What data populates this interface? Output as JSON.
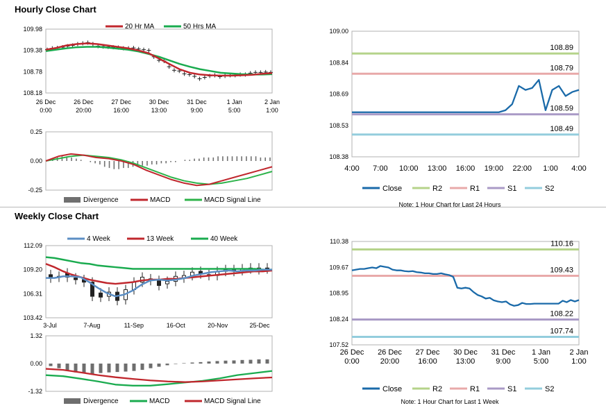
{
  "sections": {
    "hourly_title": "Hourly Close Chart",
    "weekly_title": "Weekly Close Chart"
  },
  "colors": {
    "ma20": "#c0272d",
    "ma50": "#1aab4f",
    "candle": "#222222",
    "divergence": "#707070",
    "macd": "#c0272d",
    "signal": "#2db34a",
    "close": "#1a6aa9",
    "r2": "#b5d38a",
    "r1": "#e8a9a9",
    "s1": "#a99ac6",
    "s2": "#93cddd",
    "w4": "#5b8ec4",
    "w13": "#c0272d",
    "w40": "#1aab4f",
    "w_macd": "#1aab4f",
    "w_signal": "#c0272d",
    "w_div": "#6e6e6e"
  },
  "chart_data": [
    {
      "id": "hourly-price",
      "type": "line",
      "title": "Hourly Close Chart",
      "legend": [
        "20 Hr MA",
        "50 Hrs MA"
      ],
      "ylim": [
        108.18,
        109.98
      ],
      "yticks": [
        "109.98",
        "109.38",
        "108.78",
        "108.18"
      ],
      "xticks": [
        [
          "26 Dec",
          "0:00"
        ],
        [
          "26 Dec",
          "20:00"
        ],
        [
          "27 Dec",
          "16:00"
        ],
        [
          "30 Dec",
          "13:00"
        ],
        [
          "31 Dec",
          "9:00"
        ],
        [
          "1 Jan",
          "5:00"
        ],
        [
          "2 Jan",
          "1:00"
        ]
      ],
      "price": [
        109.4,
        109.44,
        109.45,
        109.47,
        109.5,
        109.52,
        109.56,
        109.58,
        109.6,
        109.56,
        109.5,
        109.49,
        109.48,
        109.47,
        109.46,
        109.44,
        109.44,
        109.45,
        109.42,
        109.4,
        109.38,
        109.2,
        109.1,
        109.08,
        108.92,
        108.82,
        108.8,
        108.72,
        108.7,
        108.65,
        108.58,
        108.62,
        108.66,
        108.68,
        108.64,
        108.66,
        108.68,
        108.68,
        108.7,
        108.7,
        108.74,
        108.76,
        108.76,
        108.77,
        108.76
      ],
      "series": [
        {
          "name": "20 Hr MA",
          "values": [
            109.4,
            109.45,
            109.52,
            109.56,
            109.58,
            109.56,
            109.52,
            109.48,
            109.44,
            109.38,
            109.3,
            109.15,
            109.0,
            108.85,
            108.75,
            108.7,
            108.68,
            108.67,
            108.67,
            108.68,
            108.69,
            108.72,
            108.74
          ]
        },
        {
          "name": "50 Hrs MA",
          "values": [
            109.36,
            109.4,
            109.44,
            109.47,
            109.48,
            109.48,
            109.46,
            109.43,
            109.4,
            109.35,
            109.28,
            109.2,
            109.1,
            109.0,
            108.92,
            108.85,
            108.8,
            108.75,
            108.73,
            108.71,
            108.7,
            108.7,
            108.71
          ]
        }
      ]
    },
    {
      "id": "hourly-macd",
      "type": "line",
      "legend": [
        "Divergence",
        "MACD",
        "MACD Signal Line"
      ],
      "ylim": [
        -0.25,
        0.25
      ],
      "yticks": [
        "0.25",
        "0.00",
        "-0.25"
      ],
      "divergence": [
        0.01,
        0.02,
        0.03,
        0.04,
        0.04,
        0.03,
        0.02,
        0.01,
        0.0,
        -0.01,
        -0.02,
        -0.03,
        -0.05,
        -0.06,
        -0.07,
        -0.07,
        -0.06,
        -0.06,
        -0.05,
        -0.05,
        -0.04,
        -0.04,
        -0.03,
        -0.03,
        -0.02,
        -0.02,
        -0.01,
        -0.01,
        0.0,
        0.01,
        0.01,
        0.02,
        0.02,
        0.03,
        0.03,
        0.03,
        0.04,
        0.04,
        0.04,
        0.04,
        0.04,
        0.04,
        0.04,
        0.04,
        0.04,
        0.03,
        0.03,
        0.03
      ],
      "series": [
        {
          "name": "MACD",
          "values": [
            0.0,
            0.04,
            0.06,
            0.05,
            0.03,
            0.02,
            0.0,
            -0.03,
            -0.08,
            -0.12,
            -0.16,
            -0.19,
            -0.21,
            -0.2,
            -0.17,
            -0.14,
            -0.11,
            -0.08,
            -0.05
          ]
        },
        {
          "name": "MACD Signal Line",
          "values": [
            0.0,
            0.02,
            0.04,
            0.05,
            0.04,
            0.03,
            0.01,
            -0.02,
            -0.06,
            -0.1,
            -0.14,
            -0.17,
            -0.19,
            -0.2,
            -0.19,
            -0.17,
            -0.15,
            -0.12,
            -0.09
          ]
        }
      ]
    },
    {
      "id": "hourly-close-24h",
      "type": "line",
      "ylim": [
        108.38,
        109.0
      ],
      "yticks": [
        "109.00",
        "108.84",
        "108.69",
        "108.53",
        "108.38"
      ],
      "xticks": [
        "4:00",
        "7:00",
        "10:00",
        "13:00",
        "16:00",
        "19:00",
        "22:00",
        "1:00",
        "4:00"
      ],
      "close": [
        108.6,
        108.6,
        108.6,
        108.6,
        108.6,
        108.6,
        108.6,
        108.6,
        108.6,
        108.6,
        108.6,
        108.6,
        108.6,
        108.6,
        108.6,
        108.6,
        108.6,
        108.6,
        108.6,
        108.6,
        108.6,
        108.6,
        108.6,
        108.61,
        108.64,
        108.73,
        108.71,
        108.72,
        108.76,
        108.61,
        108.71,
        108.73,
        108.68,
        108.7,
        108.71
      ],
      "levels": {
        "R2": 108.89,
        "R1": 108.79,
        "S1": 108.59,
        "S2": 108.49
      },
      "level_labels": {
        "R2": "108.89",
        "R1": "108.79",
        "S1": "108.59",
        "S2": "108.49"
      },
      "legend": [
        "Close",
        "R2",
        "R1",
        "S1",
        "S2"
      ],
      "note": "Note: 1 Hour Chart for Last 24 Hours"
    },
    {
      "id": "weekly-price",
      "type": "line",
      "title": "Weekly Close Chart",
      "legend": [
        "4 Week",
        "13 Week",
        "40 Week"
      ],
      "ylim": [
        103.42,
        112.09
      ],
      "yticks": [
        "112.09",
        "109.20",
        "106.31",
        "103.42"
      ],
      "xticks": [
        "3-Jul",
        "7-Aug",
        "11-Sep",
        "16-Oct",
        "20-Nov",
        "25-Dec"
      ],
      "candles": [
        [
          108.6,
          108.2
        ],
        [
          108.3,
          108.4
        ],
        [
          108.8,
          108.3
        ],
        [
          108.2,
          108.0
        ],
        [
          108.0,
          107.7
        ],
        [
          107.7,
          106.0
        ],
        [
          106.4,
          105.9
        ],
        [
          106.0,
          106.5
        ],
        [
          106.5,
          105.5
        ],
        [
          105.6,
          106.8
        ],
        [
          106.8,
          107.7
        ],
        [
          107.7,
          108.3
        ],
        [
          108.1,
          107.9
        ],
        [
          107.9,
          107.3
        ],
        [
          107.5,
          107.8
        ],
        [
          107.8,
          108.4
        ],
        [
          108.2,
          108.5
        ],
        [
          108.5,
          108.9
        ],
        [
          109.0,
          108.7
        ],
        [
          108.6,
          108.5
        ],
        [
          108.5,
          109.0
        ],
        [
          109.0,
          109.2
        ],
        [
          109.2,
          109.0
        ],
        [
          109.1,
          109.3
        ],
        [
          109.3,
          109.4
        ],
        [
          109.2,
          109.4
        ],
        [
          109.4,
          109.3
        ]
      ],
      "series": [
        {
          "name": "4 Week",
          "values": [
            108.2,
            108.2,
            108.4,
            108.4,
            108.3,
            107.7,
            107.0,
            106.4,
            106.0,
            106.2,
            106.7,
            107.4,
            107.9,
            108.0,
            107.9,
            108.0,
            108.2,
            108.5,
            108.7,
            108.9,
            109.0,
            109.1,
            109.0,
            109.1,
            109.1,
            109.2,
            109.2
          ]
        },
        {
          "name": "13 Week",
          "values": [
            109.9,
            109.5,
            109.0,
            108.6,
            108.3,
            108.0,
            107.8,
            107.6,
            107.5,
            107.6,
            107.7,
            107.9,
            108.0,
            108.0,
            108.1,
            108.1,
            108.2,
            108.3,
            108.4,
            108.5,
            108.6,
            108.7,
            108.8,
            108.9,
            109.0,
            109.0,
            109.1
          ]
        },
        {
          "name": "40 Week",
          "values": [
            110.7,
            110.6,
            110.4,
            110.2,
            110.0,
            109.9,
            109.7,
            109.6,
            109.5,
            109.4,
            109.3,
            109.3,
            109.3,
            109.3,
            109.3,
            109.3,
            109.3,
            109.3,
            109.3,
            109.3,
            109.3,
            109.3,
            109.3,
            109.3,
            109.3,
            109.2,
            109.2
          ]
        }
      ]
    },
    {
      "id": "weekly-macd",
      "type": "line",
      "legend": [
        "Divergence",
        "MACD",
        "MACD Signal Line"
      ],
      "ylim": [
        -1.32,
        1.32
      ],
      "yticks": [
        "1.32",
        "0.00",
        "-1.32"
      ],
      "divergence": [
        -0.12,
        -0.22,
        -0.35,
        -0.42,
        -0.45,
        -0.5,
        -0.45,
        -0.42,
        -0.4,
        -0.38,
        -0.35,
        -0.3,
        -0.22,
        -0.15,
        -0.08,
        -0.02,
        0.02,
        0.05,
        0.07,
        0.1,
        0.12,
        0.14,
        0.15,
        0.17,
        0.18,
        0.2,
        0.2
      ],
      "series": [
        {
          "name": "MACD",
          "values": [
            -0.55,
            -0.6,
            -0.72,
            -0.85,
            -1.0,
            -1.05,
            -1.05,
            -0.98,
            -0.9,
            -0.82,
            -0.7,
            -0.55,
            -0.45,
            -0.35
          ]
        },
        {
          "name": "MACD Signal Line",
          "values": [
            -0.25,
            -0.3,
            -0.42,
            -0.55,
            -0.65,
            -0.73,
            -0.8,
            -0.85,
            -0.88,
            -0.85,
            -0.8,
            -0.75,
            -0.7,
            -0.66
          ]
        }
      ]
    },
    {
      "id": "weekly-close-1w",
      "type": "line",
      "ylim": [
        107.52,
        110.38
      ],
      "yticks": [
        "110.38",
        "109.67",
        "108.95",
        "108.24",
        "107.52"
      ],
      "xticks": [
        [
          "26 Dec",
          "0:00"
        ],
        [
          "26 Dec",
          "20:00"
        ],
        [
          "27 Dec",
          "16:00"
        ],
        [
          "30 Dec",
          "13:00"
        ],
        [
          "31 Dec",
          "9:00"
        ],
        [
          "1 Jan",
          "5:00"
        ],
        [
          "2 Jan",
          "1:00"
        ]
      ],
      "close": [
        109.58,
        109.6,
        109.62,
        109.62,
        109.64,
        109.66,
        109.64,
        109.7,
        109.68,
        109.66,
        109.6,
        109.58,
        109.58,
        109.56,
        109.55,
        109.56,
        109.53,
        109.52,
        109.5,
        109.5,
        109.48,
        109.48,
        109.5,
        109.47,
        109.45,
        109.4,
        109.1,
        109.08,
        109.1,
        109.08,
        108.98,
        108.9,
        108.86,
        108.8,
        108.82,
        108.75,
        108.72,
        108.7,
        108.72,
        108.64,
        108.6,
        108.62,
        108.68,
        108.65,
        108.65,
        108.66,
        108.66,
        108.66,
        108.66,
        108.66,
        108.66,
        108.66,
        108.74,
        108.7,
        108.76,
        108.72,
        108.76
      ],
      "levels": {
        "R2": 110.16,
        "R1": 109.43,
        "S1": 108.22,
        "S2": 107.74
      },
      "level_labels": {
        "R2": "110.16",
        "R1": "109.43",
        "S1": "108.22",
        "S2": "107.74"
      },
      "legend": [
        "Close",
        "R2",
        "R1",
        "S1",
        "S2"
      ],
      "note": "Note: 1 Hour Chart for Last 1 Week"
    }
  ]
}
